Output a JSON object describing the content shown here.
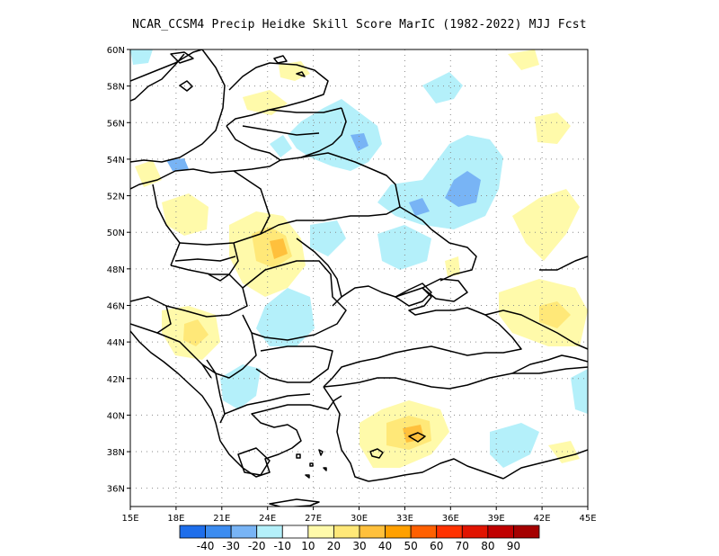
{
  "title": "NCAR_CCSM4 Precip Heidke Skill Score MarIC (1982-2022) MJJ Fcst",
  "map": {
    "lon_range": [
      15,
      45
    ],
    "lat_range": [
      35,
      60
    ],
    "lon_ticks": [
      "15E",
      "18E",
      "21E",
      "24E",
      "27E",
      "30E",
      "33E",
      "36E",
      "39E",
      "42E",
      "45E"
    ],
    "lat_ticks": [
      "36N",
      "38N",
      "40N",
      "42N",
      "44N",
      "46N",
      "48N",
      "50N",
      "52N",
      "54N",
      "56N",
      "58N",
      "60N"
    ],
    "grid": "dotted",
    "land_color": "#ffffff",
    "border_color": "#000000"
  },
  "colorbar": {
    "colors": [
      "#1e6eeb",
      "#3c8cf0",
      "#78b4f5",
      "#b4f0fa",
      "#ffffff",
      "#fffaaa",
      "#ffe878",
      "#ffc03c",
      "#ffa000",
      "#ff6000",
      "#ff3200",
      "#e11400",
      "#c00000",
      "#a50000"
    ],
    "labels": [
      "-40",
      "-30",
      "-20",
      "-10",
      "10",
      "20",
      "30",
      "40",
      "50",
      "60",
      "70",
      "80",
      "90"
    ]
  }
}
